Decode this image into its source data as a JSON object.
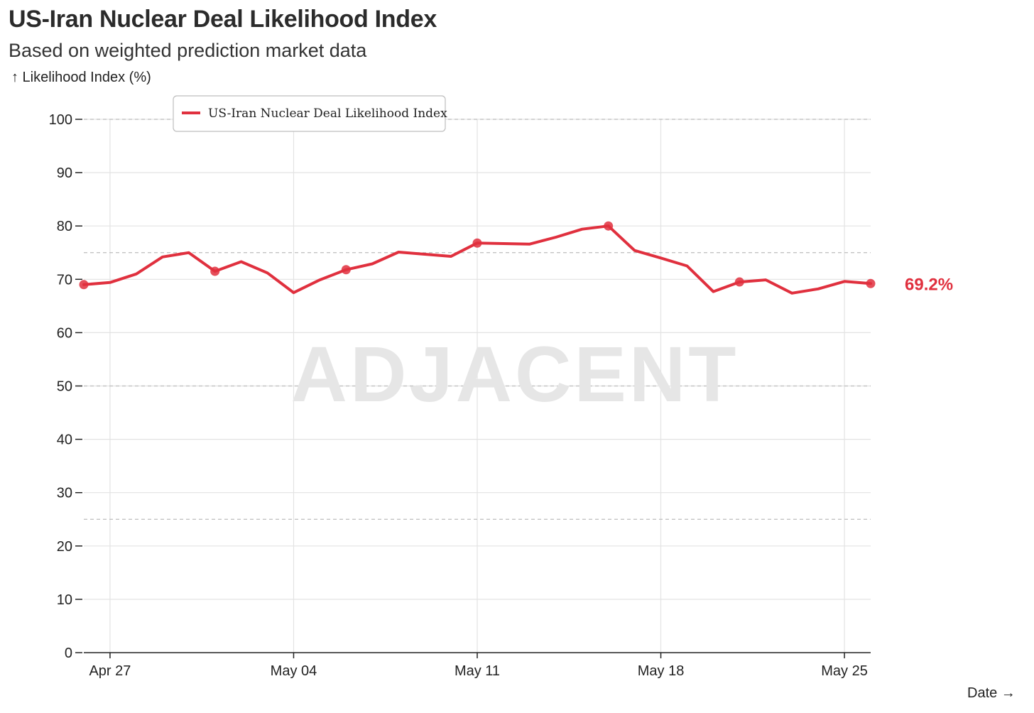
{
  "chart_data": {
    "type": "line",
    "title": "US-Iran Nuclear Deal Likelihood Index",
    "subtitle": "Based on weighted prediction market data",
    "ylabel": "↑ Likelihood Index (%)",
    "xlabel": "Date →",
    "ylim": [
      0,
      100
    ],
    "yticks": [
      0,
      10,
      20,
      30,
      40,
      50,
      60,
      70,
      80,
      90,
      100
    ],
    "reference_lines": [
      25,
      50,
      75,
      100
    ],
    "xlim": [
      "2025-04-26",
      "2025-05-26"
    ],
    "xticks": [
      {
        "date": "2025-04-27",
        "label": "Apr 27"
      },
      {
        "date": "2025-05-04",
        "label": "May 04"
      },
      {
        "date": "2025-05-11",
        "label": "May 11"
      },
      {
        "date": "2025-05-18",
        "label": "May 18"
      },
      {
        "date": "2025-05-25",
        "label": "May 25"
      }
    ],
    "grid": true,
    "legend": "top-left",
    "watermark": "ADJACENT",
    "end_label": "69.2%",
    "series": [
      {
        "name": "US-Iran Nuclear Deal Likelihood Index",
        "color": "#e0303e",
        "points": [
          {
            "x": "2025-04-26",
            "y": 69.0,
            "marker": true
          },
          {
            "x": "2025-04-27",
            "y": 69.4
          },
          {
            "x": "2025-04-28",
            "y": 71.0
          },
          {
            "x": "2025-04-29",
            "y": 74.2
          },
          {
            "x": "2025-04-30",
            "y": 75.0
          },
          {
            "x": "2025-05-01",
            "y": 71.5,
            "marker": true
          },
          {
            "x": "2025-05-02",
            "y": 73.3
          },
          {
            "x": "2025-05-03",
            "y": 71.2
          },
          {
            "x": "2025-05-04",
            "y": 67.5
          },
          {
            "x": "2025-05-05",
            "y": 69.9
          },
          {
            "x": "2025-05-06",
            "y": 71.8,
            "marker": true
          },
          {
            "x": "2025-05-07",
            "y": 72.9
          },
          {
            "x": "2025-05-08",
            "y": 75.1
          },
          {
            "x": "2025-05-09",
            "y": 74.7
          },
          {
            "x": "2025-05-10",
            "y": 74.3
          },
          {
            "x": "2025-05-11",
            "y": 76.8,
            "marker": true
          },
          {
            "x": "2025-05-12",
            "y": 76.7
          },
          {
            "x": "2025-05-13",
            "y": 76.6
          },
          {
            "x": "2025-05-14",
            "y": 77.9
          },
          {
            "x": "2025-05-15",
            "y": 79.4
          },
          {
            "x": "2025-05-16",
            "y": 80.0,
            "marker": true
          },
          {
            "x": "2025-05-17",
            "y": 75.4
          },
          {
            "x": "2025-05-18",
            "y": 74.0
          },
          {
            "x": "2025-05-19",
            "y": 72.5
          },
          {
            "x": "2025-05-20",
            "y": 67.7
          },
          {
            "x": "2025-05-21",
            "y": 69.5,
            "marker": true
          },
          {
            "x": "2025-05-22",
            "y": 69.9
          },
          {
            "x": "2025-05-23",
            "y": 67.4
          },
          {
            "x": "2025-05-24",
            "y": 68.2
          },
          {
            "x": "2025-05-25",
            "y": 69.6
          },
          {
            "x": "2025-05-26",
            "y": 69.2,
            "marker": true
          }
        ]
      }
    ]
  }
}
